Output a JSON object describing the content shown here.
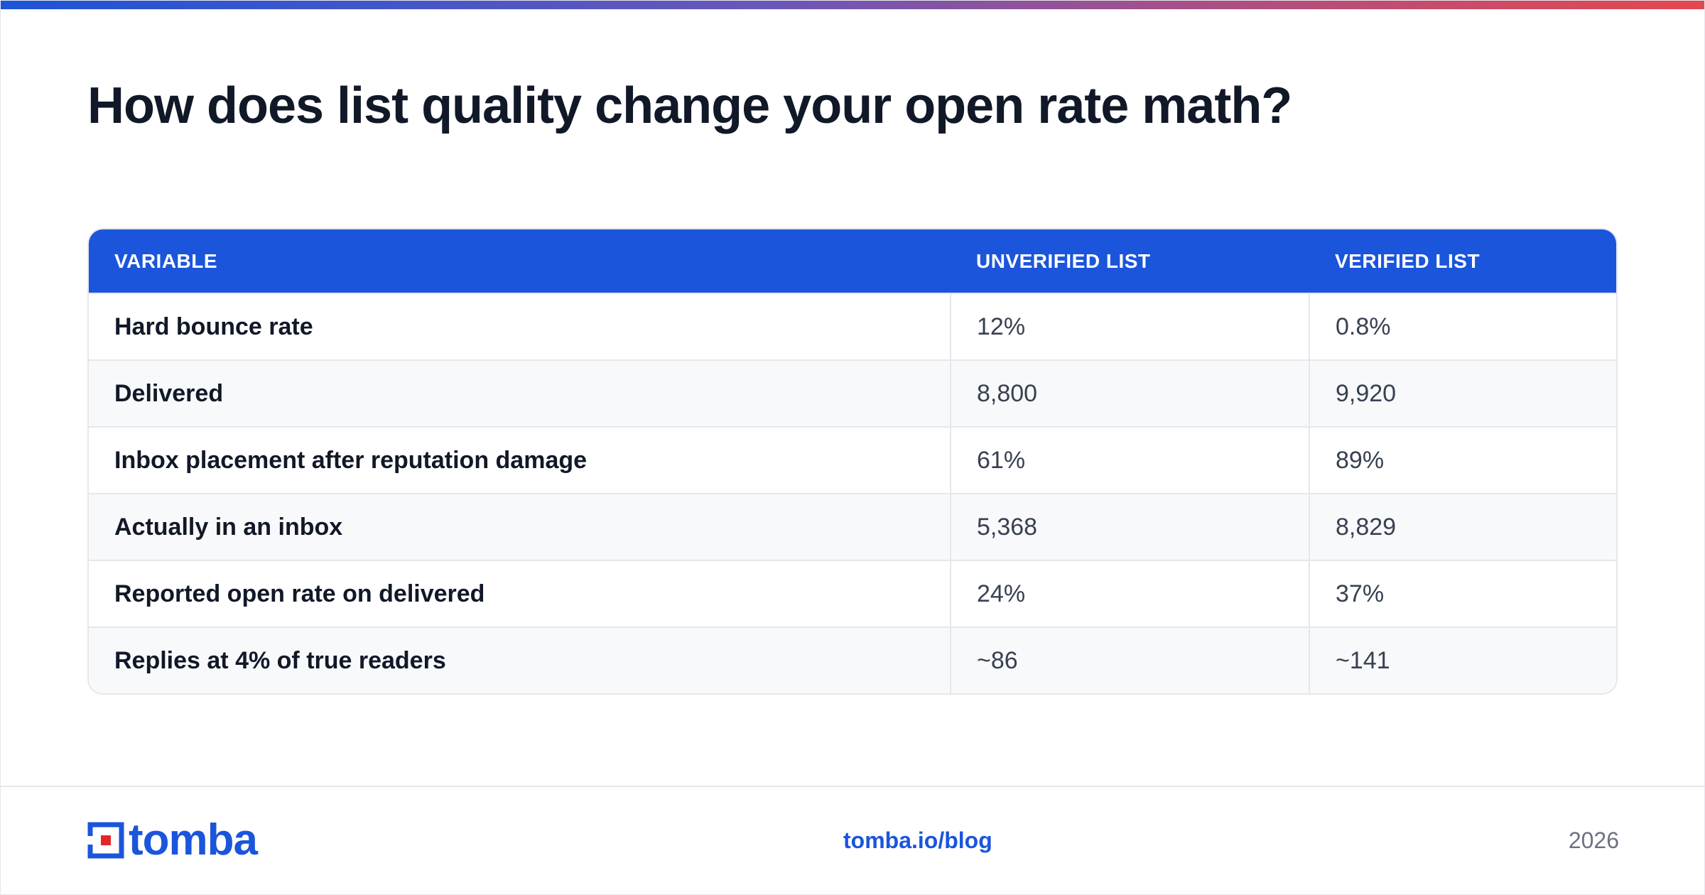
{
  "title": "How does list quality change your open rate math?",
  "table": {
    "headers": [
      "VARIABLE",
      "UNVERIFIED LIST",
      "VERIFIED LIST"
    ],
    "rows": [
      {
        "variable": "Hard bounce rate",
        "unverified": "12%",
        "verified": "0.8%"
      },
      {
        "variable": "Delivered",
        "unverified": "8,800",
        "verified": "9,920"
      },
      {
        "variable": "Inbox placement after reputation damage",
        "unverified": "61%",
        "verified": "89%"
      },
      {
        "variable": "Actually in an inbox",
        "unverified": "5,368",
        "verified": "8,829"
      },
      {
        "variable": "Reported open rate on delivered",
        "unverified": "24%",
        "verified": "37%"
      },
      {
        "variable": "Replies at 4% of true readers",
        "unverified": "~86",
        "verified": "~141"
      }
    ]
  },
  "footer": {
    "logo_text": "tomba",
    "url": "tomba.io/blog",
    "year": "2026"
  },
  "colors": {
    "brand_blue": "#1b55db",
    "logo_red": "#e5252a",
    "title": "#111827"
  }
}
